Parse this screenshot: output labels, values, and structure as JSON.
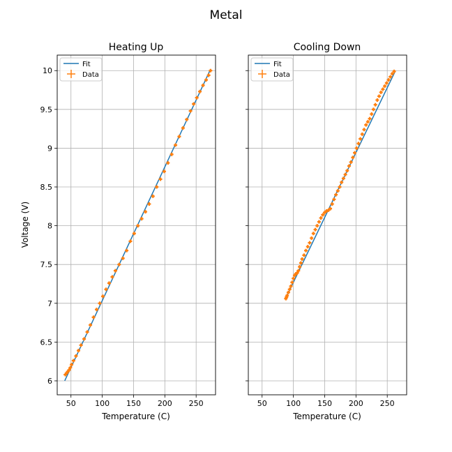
{
  "figure": {
    "title": "Metal",
    "shared_ylabel": "Voltage (V)"
  },
  "colors": {
    "fit": "#1f77b4",
    "data": "#ff7f0e",
    "grid": "#b0b0b0"
  },
  "chart_data": [
    {
      "type": "line",
      "title": "Heating Up",
      "xlabel": "Temperature (C)",
      "ylabel": "Voltage (V)",
      "xlim": [
        28,
        281
      ],
      "ylim": [
        5.82,
        10.2
      ],
      "xticks": [
        50,
        100,
        150,
        200,
        250
      ],
      "yticks": [
        6.0,
        6.5,
        7.0,
        7.5,
        8.0,
        8.5,
        9.0,
        9.5,
        10.0
      ],
      "grid": true,
      "legend": {
        "placement": "top-left",
        "entries": [
          "Fit",
          "Data"
        ]
      },
      "series": [
        {
          "name": "Fit",
          "style": "line",
          "x": [
            40,
            272
          ],
          "y": [
            6.0,
            10.0
          ]
        },
        {
          "name": "Data",
          "style": "errorbar-markers",
          "x": [
            41,
            43,
            45,
            47,
            49,
            51,
            54,
            58,
            62,
            66,
            71,
            76,
            81,
            86,
            91,
            96,
            101,
            106,
            111,
            116,
            121,
            127,
            133,
            139,
            145,
            151,
            157,
            163,
            169,
            175,
            181,
            187,
            193,
            199,
            205,
            211,
            217,
            223,
            229,
            235,
            241,
            246,
            251,
            256,
            261,
            266,
            270,
            273
          ],
          "y": [
            6.08,
            6.1,
            6.12,
            6.14,
            6.17,
            6.21,
            6.26,
            6.32,
            6.39,
            6.46,
            6.54,
            6.63,
            6.72,
            6.82,
            6.92,
            7.0,
            7.09,
            7.18,
            7.26,
            7.34,
            7.42,
            7.5,
            7.58,
            7.68,
            7.8,
            7.9,
            8.0,
            8.09,
            8.18,
            8.28,
            8.38,
            8.5,
            8.6,
            8.7,
            8.81,
            8.92,
            9.04,
            9.15,
            9.26,
            9.37,
            9.48,
            9.57,
            9.65,
            9.73,
            9.81,
            9.88,
            9.94,
            10.0
          ]
        }
      ]
    },
    {
      "type": "line",
      "title": "Cooling Down",
      "xlabel": "Temperature (C)",
      "ylabel": "",
      "xlim": [
        28,
        281
      ],
      "ylim": [
        5.82,
        10.2
      ],
      "xticks": [
        50,
        100,
        150,
        200,
        250
      ],
      "yticks": [
        6.0,
        6.5,
        7.0,
        7.5,
        8.0,
        8.5,
        9.0,
        9.5,
        10.0
      ],
      "grid": true,
      "legend": {
        "placement": "top-left",
        "entries": [
          "Fit",
          "Data"
        ]
      },
      "series": [
        {
          "name": "Fit",
          "style": "line",
          "x": [
            88,
            262
          ],
          "y": [
            7.07,
            9.98
          ]
        },
        {
          "name": "Data",
          "style": "errorbar-markers",
          "x": [
            88,
            89,
            90,
            92,
            94,
            96,
            98,
            100,
            102,
            104,
            106,
            108,
            110,
            112,
            114,
            117,
            120,
            123,
            126,
            129,
            132,
            135,
            138,
            141,
            144,
            147,
            150,
            153,
            156,
            159,
            162,
            165,
            168,
            171,
            174,
            177,
            180,
            183,
            186,
            189,
            192,
            195,
            198,
            201,
            204,
            207,
            210,
            213,
            216,
            219,
            222,
            225,
            228,
            231,
            234,
            237,
            240,
            243,
            246,
            249,
            252,
            255,
            258,
            261
          ],
          "y": [
            7.06,
            7.08,
            7.1,
            7.14,
            7.18,
            7.22,
            7.27,
            7.32,
            7.36,
            7.38,
            7.39,
            7.42,
            7.47,
            7.52,
            7.57,
            7.62,
            7.68,
            7.73,
            7.78,
            7.84,
            7.9,
            7.95,
            8.0,
            8.05,
            8.1,
            8.14,
            8.17,
            8.19,
            8.2,
            8.22,
            8.28,
            8.34,
            8.4,
            8.45,
            8.5,
            8.56,
            8.61,
            8.66,
            8.71,
            8.77,
            8.82,
            8.88,
            8.94,
            9.0,
            9.06,
            9.12,
            9.18,
            9.24,
            9.3,
            9.34,
            9.38,
            9.44,
            9.5,
            9.56,
            9.62,
            9.67,
            9.72,
            9.76,
            9.8,
            9.84,
            9.88,
            9.92,
            9.96,
            9.99
          ]
        }
      ]
    }
  ]
}
